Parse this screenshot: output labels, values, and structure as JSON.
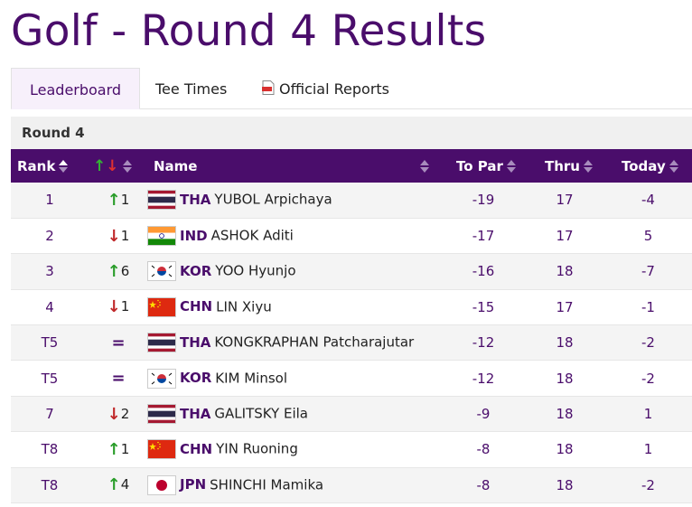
{
  "page": {
    "title": "Golf - Round 4 Results"
  },
  "tabs": [
    {
      "label": "Leaderboard",
      "active": true
    },
    {
      "label": "Tee Times",
      "active": false
    },
    {
      "label": "Official Reports",
      "active": false,
      "icon": "pdf-icon"
    }
  ],
  "section": {
    "label": "Round 4"
  },
  "table": {
    "columns": [
      "Rank",
      "",
      "Name",
      "To Par",
      "Thru",
      "Today"
    ],
    "rows": [
      {
        "rank": "1",
        "move_dir": "up",
        "move": "1",
        "noc": "THA",
        "name": "YUBOL Arpichaya",
        "to_par": "-19",
        "thru": "17",
        "today": "-4"
      },
      {
        "rank": "2",
        "move_dir": "down",
        "move": "1",
        "noc": "IND",
        "name": "ASHOK Aditi",
        "to_par": "-17",
        "thru": "17",
        "today": "5"
      },
      {
        "rank": "3",
        "move_dir": "up",
        "move": "6",
        "noc": "KOR",
        "name": "YOO Hyunjo",
        "to_par": "-16",
        "thru": "18",
        "today": "-7"
      },
      {
        "rank": "4",
        "move_dir": "down",
        "move": "1",
        "noc": "CHN",
        "name": "LIN Xiyu",
        "to_par": "-15",
        "thru": "17",
        "today": "-1"
      },
      {
        "rank": "T5",
        "move_dir": "same",
        "move": "=",
        "noc": "THA",
        "name": "KONGKRAPHAN Patcharajutar",
        "to_par": "-12",
        "thru": "18",
        "today": "-2"
      },
      {
        "rank": "T5",
        "move_dir": "same",
        "move": "=",
        "noc": "KOR",
        "name": "KIM Minsol",
        "to_par": "-12",
        "thru": "18",
        "today": "-2"
      },
      {
        "rank": "7",
        "move_dir": "down",
        "move": "2",
        "noc": "THA",
        "name": "GALITSKY Eila",
        "to_par": "-9",
        "thru": "18",
        "today": "1"
      },
      {
        "rank": "T8",
        "move_dir": "up",
        "move": "1",
        "noc": "CHN",
        "name": "YIN Ruoning",
        "to_par": "-8",
        "thru": "18",
        "today": "1"
      },
      {
        "rank": "T8",
        "move_dir": "up",
        "move": "4",
        "noc": "JPN",
        "name": "SHINCHI Mamika",
        "to_par": "-8",
        "thru": "18",
        "today": "-2"
      }
    ]
  },
  "colors": {
    "brand": "#4a0d6b",
    "up": "#2a9d2a",
    "down": "#c0282a"
  }
}
